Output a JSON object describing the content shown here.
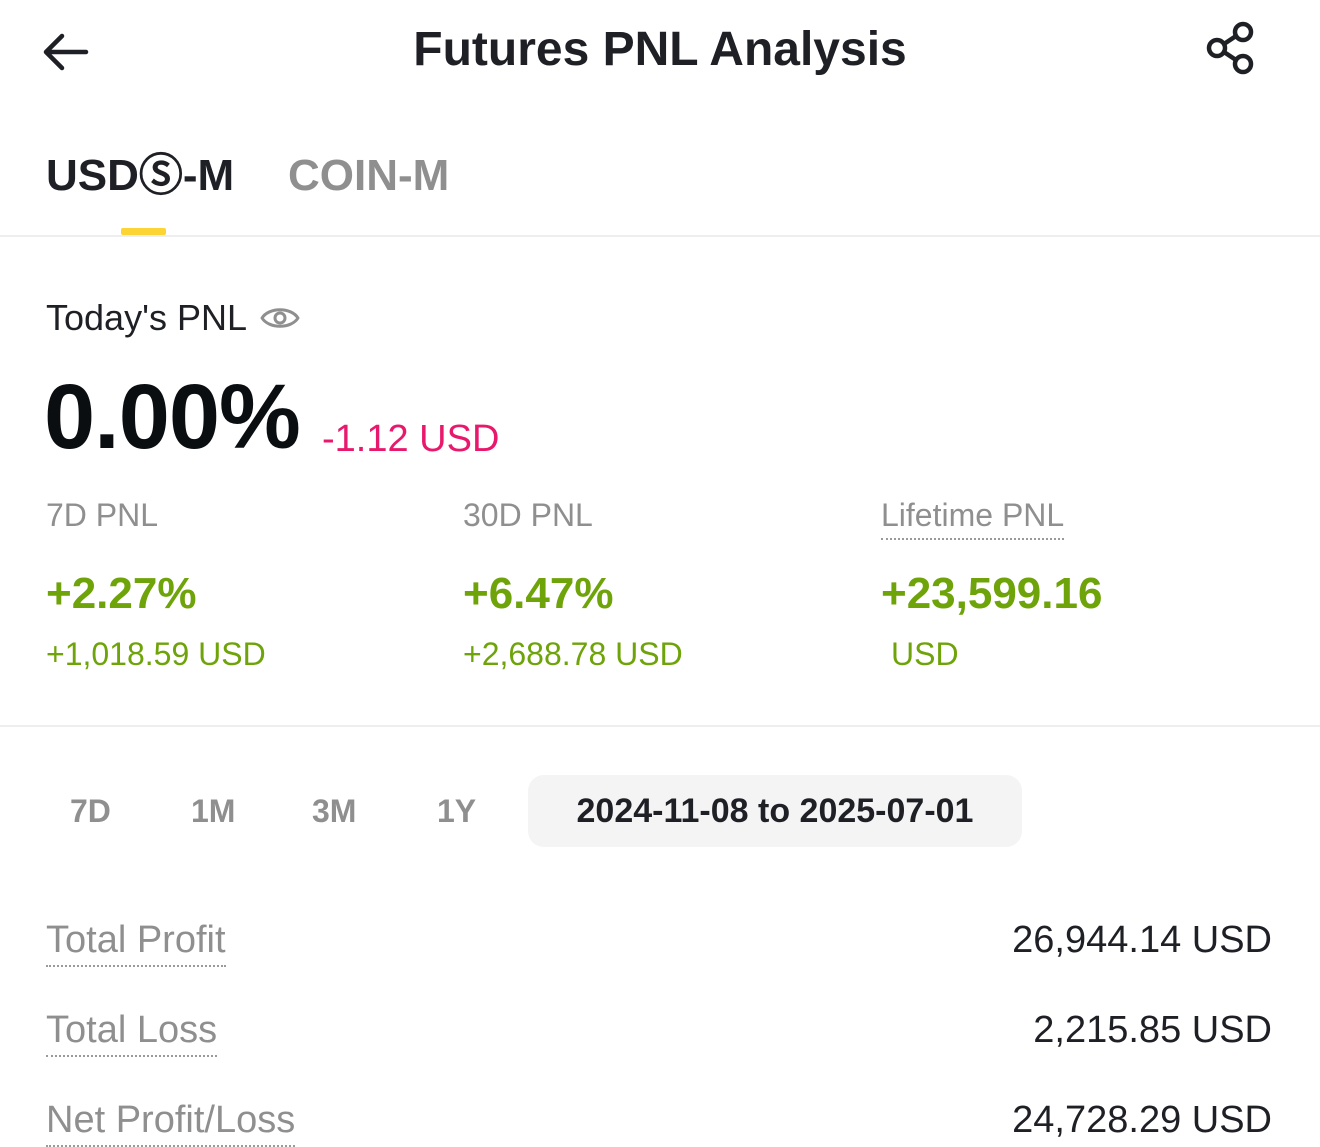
{
  "header": {
    "title": "Futures PNL Analysis",
    "back_icon": "arrow-left-icon",
    "share_icon": "share-icon"
  },
  "tabs": [
    {
      "label": "USDⓈ-M",
      "active": true
    },
    {
      "label": "COIN-M",
      "active": false
    }
  ],
  "today": {
    "label": "Today's PNL",
    "eye_icon": "eye-icon",
    "percent": "0.00%",
    "usd": "-1.12 USD"
  },
  "stats": [
    {
      "label": "7D PNL",
      "percent": "+2.27%",
      "usd": "+1,018.59 USD"
    },
    {
      "label": "30D PNL",
      "percent": "+6.47%",
      "usd": "+2,688.78 USD"
    },
    {
      "label": "Lifetime PNL",
      "percent": "+23,599.16",
      "usd": "USD"
    }
  ],
  "filters": {
    "options": [
      "7D",
      "1M",
      "3M",
      "1Y"
    ],
    "range": "2024-11-08 to 2025-07-01"
  },
  "summary": [
    {
      "label": "Total Profit",
      "value": "26,944.14 USD"
    },
    {
      "label": "Total Loss",
      "value": "2,215.85 USD"
    },
    {
      "label": "Net Profit/Loss",
      "value": "24,728.29 USD"
    }
  ],
  "colors": {
    "accent_yellow": "#fcd535",
    "positive_green": "#6fa30a",
    "negative_pink": "#e8196d",
    "muted_gray": "#8f8f8f"
  }
}
